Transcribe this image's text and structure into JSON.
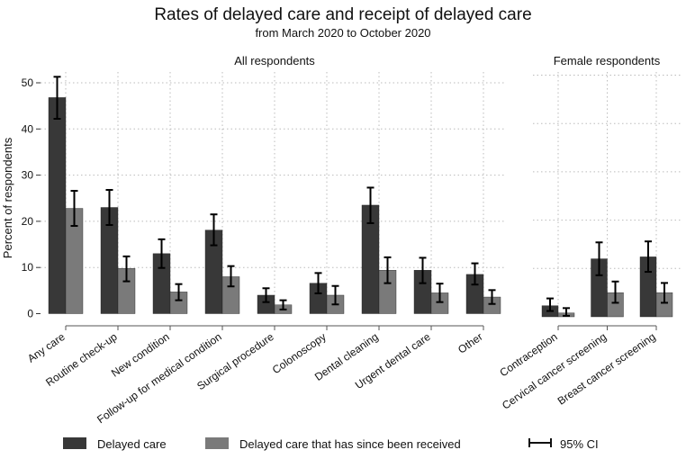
{
  "chart_data": {
    "type": "bar",
    "title": "Rates of delayed care and receipt of delayed care",
    "subtitle": "from March 2020 to October 2020",
    "ylabel": "Percent of respondents",
    "colors": {
      "delayed": "#383838",
      "received": "#7a7a7a"
    },
    "legend": {
      "position": "bottom",
      "entries": [
        "Delayed care",
        "Delayed care that has since been received",
        "95% CI"
      ]
    },
    "panels": [
      {
        "title": "All respondents",
        "ylim": [
          0,
          50
        ],
        "yticks": [
          0,
          10,
          20,
          30,
          40,
          50
        ],
        "categories": [
          "Any care",
          "Routine check-up",
          "New condition",
          "Follow-up for medical condition",
          "Surgical procedure",
          "Colonoscopy",
          "Dental cleaning",
          "Urgent dental care",
          "Other"
        ],
        "series": [
          {
            "name": "Delayed care",
            "values": [
              46.8,
              23.0,
              13.0,
              18.1,
              4.0,
              6.6,
              23.5,
              9.4,
              8.5
            ],
            "ci_low": [
              42.2,
              19.2,
              9.9,
              14.8,
              2.5,
              4.4,
              19.6,
              6.6,
              6.3
            ],
            "ci_high": [
              51.3,
              26.8,
              16.1,
              21.5,
              5.5,
              8.8,
              27.3,
              12.1,
              10.9
            ]
          },
          {
            "name": "Delayed care that has since been received",
            "values": [
              22.8,
              9.8,
              4.7,
              8.0,
              1.9,
              4.0,
              9.4,
              4.5,
              3.6
            ],
            "ci_low": [
              19.0,
              7.0,
              2.9,
              5.9,
              0.9,
              2.0,
              6.6,
              2.5,
              2.1
            ],
            "ci_high": [
              26.6,
              12.4,
              6.4,
              10.3,
              2.9,
              6.0,
              12.2,
              6.5,
              5.1
            ]
          }
        ]
      },
      {
        "title": "Female respondents",
        "ylim": [
          0,
          50
        ],
        "categories": [
          "Contraception",
          "Cervical cancer screening",
          "Breast cancer screening"
        ],
        "series": [
          {
            "name": "Delayed care",
            "values": [
              2.3,
              12.0,
              12.4
            ],
            "ci_low": [
              1.2,
              8.6,
              9.3
            ],
            "ci_high": [
              3.8,
              15.4,
              15.6
            ]
          },
          {
            "name": "Delayed care that has since been received",
            "values": [
              0.8,
              5.0,
              5.0
            ],
            "ci_low": [
              0.2,
              2.9,
              2.9
            ],
            "ci_high": [
              1.8,
              7.3,
              7.0
            ]
          }
        ]
      }
    ]
  }
}
